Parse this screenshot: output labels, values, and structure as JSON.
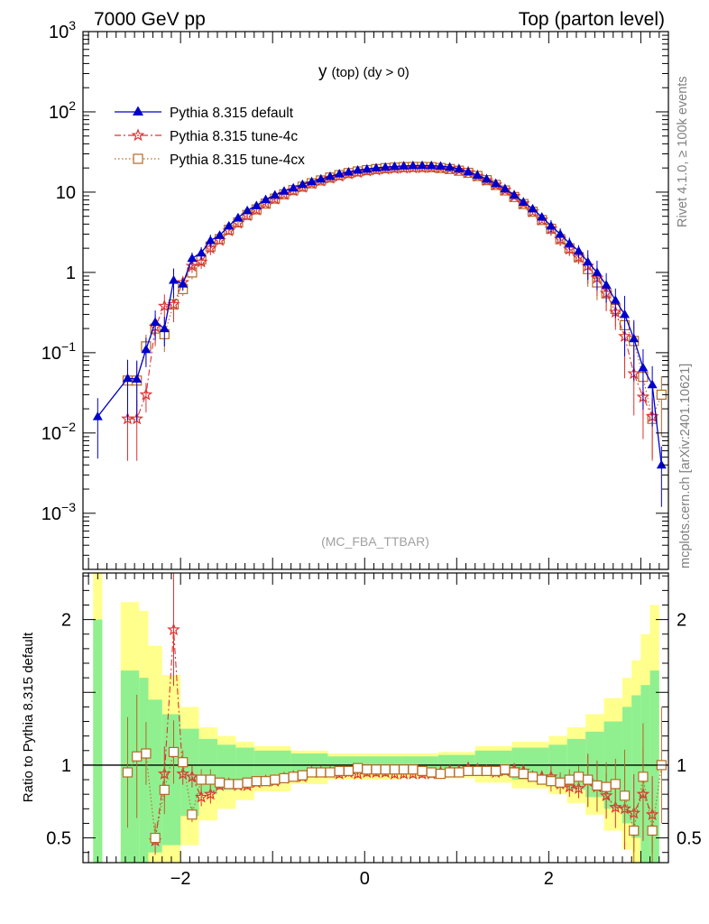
{
  "header": {
    "left": "7000 GeV pp",
    "right": "Top (parton level)"
  },
  "side_labels": {
    "rivet": "Rivet 4.1.0, ≥ 100k events",
    "mcplots": "mcplots.cern.ch [arXiv:2401.10621]"
  },
  "chart_data": [
    {
      "type": "line",
      "title": "y (top) (dy > 0)",
      "title_main": "y",
      "title_rest": "(top) (dy > 0)",
      "annotation": "(MC_FBA_TTBAR)",
      "yscale": "log",
      "xlim": [
        -3.06,
        3.3
      ],
      "ylim": [
        0.0002,
        1000
      ],
      "yticks": [
        {
          "value": 0.001,
          "base": "10",
          "exp": "−3"
        },
        {
          "value": 0.01,
          "base": "10",
          "exp": "−2"
        },
        {
          "value": 0.1,
          "base": "10",
          "exp": "−1"
        },
        {
          "value": 1,
          "base": "1",
          "exp": ""
        },
        {
          "value": 10,
          "base": "10",
          "exp": ""
        },
        {
          "value": 100,
          "base": "10",
          "exp": "2"
        },
        {
          "value": 1000,
          "base": "10",
          "exp": "3"
        }
      ],
      "series": [
        {
          "name": "Pythia 8.315 default",
          "color": "#0000cc",
          "marker": "triangle",
          "x": [
            -2.9,
            -2.575,
            -2.475,
            -2.375,
            -2.275,
            -2.175,
            -2.075,
            -1.975,
            -1.875,
            -1.775,
            -1.675,
            -1.575,
            -1.475,
            -1.375,
            -1.275,
            -1.175,
            -1.075,
            -0.975,
            -0.875,
            -0.775,
            -0.675,
            -0.575,
            -0.475,
            -0.375,
            -0.275,
            -0.175,
            -0.075,
            0.025,
            0.125,
            0.225,
            0.325,
            0.425,
            0.525,
            0.625,
            0.725,
            0.825,
            0.925,
            1.025,
            1.125,
            1.225,
            1.325,
            1.425,
            1.525,
            1.625,
            1.725,
            1.825,
            1.925,
            2.025,
            2.125,
            2.225,
            2.325,
            2.425,
            2.525,
            2.625,
            2.725,
            2.825,
            2.925,
            3.025,
            3.125,
            3.225
          ],
          "y": [
            0.016,
            0.048,
            0.047,
            0.11,
            0.24,
            0.2,
            0.8,
            0.72,
            1.5,
            1.75,
            2.5,
            2.9,
            3.8,
            4.8,
            5.9,
            6.8,
            8.1,
            9.2,
            10.3,
            11.3,
            12.5,
            13.5,
            14.6,
            15.7,
            16.9,
            17.8,
            18.8,
            19.4,
            20.0,
            20.5,
            20.9,
            21.2,
            21.4,
            21.5,
            21.4,
            21.1,
            20.5,
            19.5,
            18.0,
            16.3,
            14.6,
            12.8,
            11.0,
            9.2,
            7.5,
            6.2,
            4.9,
            3.8,
            3.0,
            2.3,
            1.85,
            1.35,
            1.0,
            0.7,
            0.45,
            0.3,
            0.15,
            0.065,
            0.04,
            0.004
          ]
        },
        {
          "name": "Pythia 8.315 tune-4c",
          "color": "#dd3333",
          "marker": "star",
          "x": [
            -2.575,
            -2.475,
            -2.375,
            -2.275,
            -2.175,
            -2.075,
            -1.975,
            -1.875,
            -1.775,
            -1.675,
            -1.575,
            -1.475,
            -1.375,
            -1.275,
            -1.175,
            -1.075,
            -0.975,
            -0.875,
            -0.775,
            -0.675,
            -0.575,
            -0.475,
            -0.375,
            -0.275,
            -0.175,
            -0.075,
            0.025,
            0.125,
            0.225,
            0.325,
            0.425,
            0.525,
            0.625,
            0.725,
            0.825,
            0.925,
            1.025,
            1.125,
            1.225,
            1.325,
            1.425,
            1.525,
            1.625,
            1.725,
            1.825,
            1.925,
            2.025,
            2.125,
            2.225,
            2.325,
            2.425,
            2.525,
            2.625,
            2.725,
            2.825,
            2.925,
            3.025,
            3.125
          ],
          "y": [
            0.015,
            0.015,
            0.03,
            0.21,
            0.38,
            0.4,
            0.75,
            1.2,
            1.35,
            2.0,
            2.5,
            3.3,
            4.1,
            5.1,
            6.0,
            7.2,
            8.2,
            9.4,
            10.4,
            11.5,
            12.8,
            13.8,
            14.9,
            15.8,
            16.9,
            17.6,
            18.4,
            18.9,
            19.4,
            19.7,
            19.9,
            20.0,
            20.1,
            20.2,
            20.0,
            19.6,
            18.8,
            17.6,
            15.8,
            14.0,
            12.3,
            10.6,
            8.9,
            7.2,
            5.7,
            4.5,
            3.5,
            2.6,
            1.95,
            1.55,
            1.2,
            0.85,
            0.55,
            0.32,
            0.16,
            0.055,
            0.028,
            0.016
          ]
        },
        {
          "name": "Pythia 8.315 tune-4cx",
          "color": "#b36b24",
          "marker": "square",
          "x": [
            -2.575,
            -2.475,
            -2.375,
            -2.275,
            -2.175,
            -2.075,
            -1.975,
            -1.875,
            -1.775,
            -1.675,
            -1.575,
            -1.475,
            -1.375,
            -1.275,
            -1.175,
            -1.075,
            -0.975,
            -0.875,
            -0.775,
            -0.675,
            -0.575,
            -0.475,
            -0.375,
            -0.275,
            -0.175,
            -0.075,
            0.025,
            0.125,
            0.225,
            0.325,
            0.425,
            0.525,
            0.625,
            0.725,
            0.825,
            0.925,
            1.025,
            1.125,
            1.225,
            1.325,
            1.425,
            1.525,
            1.625,
            1.725,
            1.825,
            1.925,
            2.025,
            2.125,
            2.225,
            2.325,
            2.425,
            2.525,
            2.625,
            2.725,
            2.825,
            2.925,
            3.025,
            3.125,
            3.225
          ],
          "y": [
            0.045,
            0.045,
            0.12,
            0.2,
            0.17,
            0.4,
            0.62,
            1.0,
            1.45,
            2.1,
            2.6,
            3.4,
            4.2,
            5.2,
            6.1,
            7.2,
            8.3,
            9.4,
            10.6,
            11.7,
            12.9,
            14.0,
            15.2,
            16.3,
            17.3,
            18.1,
            18.8,
            19.4,
            19.9,
            20.2,
            20.5,
            20.6,
            20.6,
            20.5,
            20.0,
            19.4,
            18.5,
            17.4,
            15.9,
            14.1,
            12.3,
            10.5,
            8.7,
            7.1,
            5.7,
            4.5,
            3.5,
            2.6,
            2.0,
            1.55,
            1.1,
            0.75,
            0.55,
            0.35,
            0.22,
            0.14,
            0.05,
            0.015,
            0.03
          ]
        }
      ]
    },
    {
      "type": "line",
      "ylabel": "Ratio to Pythia 8.315 default",
      "xlim": [
        -3.06,
        3.3
      ],
      "ylim": [
        0.33,
        2.32
      ],
      "xticks": [
        {
          "value": -2,
          "label": "−2"
        },
        {
          "value": 0,
          "label": "0"
        },
        {
          "value": 2,
          "label": "2"
        }
      ],
      "yticks": [
        {
          "value": 0.5,
          "label": "0.5"
        },
        {
          "value": 1,
          "label": "1"
        },
        {
          "value": 2,
          "label": "2"
        }
      ],
      "reference_line": 1,
      "band_green": [
        [
          -2.95,
          -2.85,
          0.3,
          2.0
        ],
        [
          -2.65,
          -2.45,
          0.3,
          1.65
        ],
        [
          -2.45,
          -2.35,
          0.3,
          1.6
        ],
        [
          -2.35,
          -2.2,
          0.4,
          1.45
        ],
        [
          -2.2,
          -2.0,
          0.45,
          1.35
        ],
        [
          -2.0,
          -1.8,
          0.65,
          1.25
        ],
        [
          -1.8,
          -1.6,
          0.8,
          1.18
        ],
        [
          -1.6,
          -1.4,
          0.83,
          1.14
        ],
        [
          -1.4,
          -1.2,
          0.86,
          1.12
        ],
        [
          -1.2,
          -0.8,
          0.89,
          1.1
        ],
        [
          -0.8,
          -0.4,
          0.92,
          1.08
        ],
        [
          -0.4,
          0.4,
          0.94,
          1.06
        ],
        [
          0.4,
          0.8,
          0.95,
          1.06
        ],
        [
          0.8,
          1.2,
          0.95,
          1.07
        ],
        [
          1.2,
          1.6,
          0.93,
          1.1
        ],
        [
          1.6,
          2.0,
          0.9,
          1.12
        ],
        [
          2.0,
          2.2,
          0.87,
          1.14
        ],
        [
          2.2,
          2.4,
          0.83,
          1.18
        ],
        [
          2.4,
          2.6,
          0.78,
          1.23
        ],
        [
          2.6,
          2.8,
          0.7,
          1.3
        ],
        [
          2.8,
          2.9,
          0.6,
          1.4
        ],
        [
          2.9,
          3.0,
          0.5,
          1.48
        ],
        [
          3.0,
          3.1,
          0.3,
          1.55
        ],
        [
          3.1,
          3.2,
          0.3,
          1.65
        ]
      ],
      "band_yellow": [
        [
          -2.95,
          -2.85,
          0.3,
          2.32
        ],
        [
          -2.65,
          -2.45,
          0.3,
          2.12
        ],
        [
          -2.45,
          -2.35,
          0.3,
          2.06
        ],
        [
          -2.35,
          -2.2,
          0.3,
          1.82
        ],
        [
          -2.2,
          -2.0,
          0.3,
          1.62
        ],
        [
          -2.0,
          -1.8,
          0.45,
          1.4
        ],
        [
          -1.8,
          -1.6,
          0.62,
          1.26
        ],
        [
          -1.6,
          -1.4,
          0.7,
          1.2
        ],
        [
          -1.4,
          -1.2,
          0.76,
          1.16
        ],
        [
          -1.2,
          -0.8,
          0.82,
          1.13
        ],
        [
          -0.8,
          -0.4,
          0.87,
          1.1
        ],
        [
          -0.4,
          0.4,
          0.9,
          1.08
        ],
        [
          0.4,
          0.8,
          0.91,
          1.08
        ],
        [
          0.8,
          1.2,
          0.91,
          1.09
        ],
        [
          1.2,
          1.6,
          0.88,
          1.13
        ],
        [
          1.6,
          2.0,
          0.84,
          1.16
        ],
        [
          2.0,
          2.2,
          0.8,
          1.2
        ],
        [
          2.2,
          2.4,
          0.74,
          1.26
        ],
        [
          2.4,
          2.6,
          0.66,
          1.35
        ],
        [
          2.6,
          2.8,
          0.55,
          1.46
        ],
        [
          2.8,
          2.9,
          0.42,
          1.6
        ],
        [
          2.9,
          3.0,
          0.3,
          1.72
        ],
        [
          3.0,
          3.1,
          0.3,
          1.9
        ],
        [
          3.1,
          3.2,
          0.3,
          2.1
        ]
      ],
      "series": [
        {
          "name": "Pythia 8.315 tune-4c",
          "color": "#dd3333",
          "marker": "star",
          "x": [
            -2.275,
            -2.175,
            -2.075,
            -1.975,
            -1.875,
            -1.775,
            -1.675,
            -1.575,
            -1.475,
            -1.375,
            -1.275,
            -1.175,
            -1.075,
            -0.975,
            -0.875,
            -0.775,
            -0.675,
            -0.575,
            -0.475,
            -0.375,
            -0.275,
            -0.175,
            -0.075,
            0.025,
            0.125,
            0.225,
            0.325,
            0.425,
            0.525,
            0.625,
            0.725,
            0.825,
            0.925,
            1.025,
            1.125,
            1.225,
            1.325,
            1.425,
            1.525,
            1.625,
            1.725,
            1.825,
            1.925,
            2.025,
            2.125,
            2.225,
            2.325,
            2.425,
            2.525,
            2.625,
            2.725,
            2.825,
            2.925,
            3.025,
            3.125
          ],
          "y": [
            0.48,
            0.94,
            1.93,
            0.94,
            0.92,
            0.78,
            0.8,
            0.86,
            0.87,
            0.86,
            0.86,
            0.88,
            0.89,
            0.89,
            0.91,
            0.92,
            0.92,
            0.95,
            0.95,
            0.95,
            0.94,
            0.95,
            0.94,
            0.95,
            0.95,
            0.95,
            0.94,
            0.94,
            0.94,
            0.94,
            0.94,
            0.95,
            0.96,
            0.96,
            0.98,
            0.97,
            0.96,
            0.95,
            0.96,
            0.97,
            0.96,
            0.92,
            0.92,
            0.92,
            0.87,
            0.85,
            0.84,
            0.89,
            0.85,
            0.79,
            0.71,
            0.7,
            0.67,
            0.8,
            0.66
          ]
        },
        {
          "name": "Pythia 8.315 tune-4cx",
          "color": "#b36b24",
          "marker": "square",
          "x": [
            -2.575,
            -2.475,
            -2.375,
            -2.275,
            -2.175,
            -2.075,
            -1.975,
            -1.875,
            -1.775,
            -1.675,
            -1.575,
            -1.475,
            -1.375,
            -1.275,
            -1.175,
            -1.075,
            -0.975,
            -0.875,
            -0.775,
            -0.675,
            -0.575,
            -0.475,
            -0.375,
            -0.275,
            -0.175,
            -0.075,
            0.025,
            0.125,
            0.225,
            0.325,
            0.425,
            0.525,
            0.625,
            0.725,
            0.825,
            0.925,
            1.025,
            1.125,
            1.225,
            1.325,
            1.425,
            1.525,
            1.625,
            1.725,
            1.825,
            1.925,
            2.025,
            2.125,
            2.225,
            2.325,
            2.425,
            2.525,
            2.625,
            2.725,
            2.825,
            2.925,
            3.025,
            3.125,
            3.225
          ],
          "y": [
            0.95,
            1.06,
            1.08,
            0.5,
            0.83,
            1.09,
            1.02,
            0.66,
            0.9,
            0.9,
            0.88,
            0.87,
            0.87,
            0.88,
            0.89,
            0.89,
            0.9,
            0.91,
            0.92,
            0.93,
            0.95,
            0.95,
            0.95,
            0.96,
            0.96,
            0.98,
            0.97,
            0.97,
            0.97,
            0.97,
            0.97,
            0.97,
            0.96,
            0.95,
            0.94,
            0.95,
            0.95,
            0.96,
            0.96,
            0.96,
            0.96,
            0.97,
            0.95,
            0.94,
            0.92,
            0.9,
            0.89,
            0.88,
            0.9,
            0.92,
            0.9,
            0.86,
            0.85,
            0.87,
            0.79,
            0.55,
            0.92,
            0.55,
            1.0
          ]
        }
      ]
    }
  ]
}
